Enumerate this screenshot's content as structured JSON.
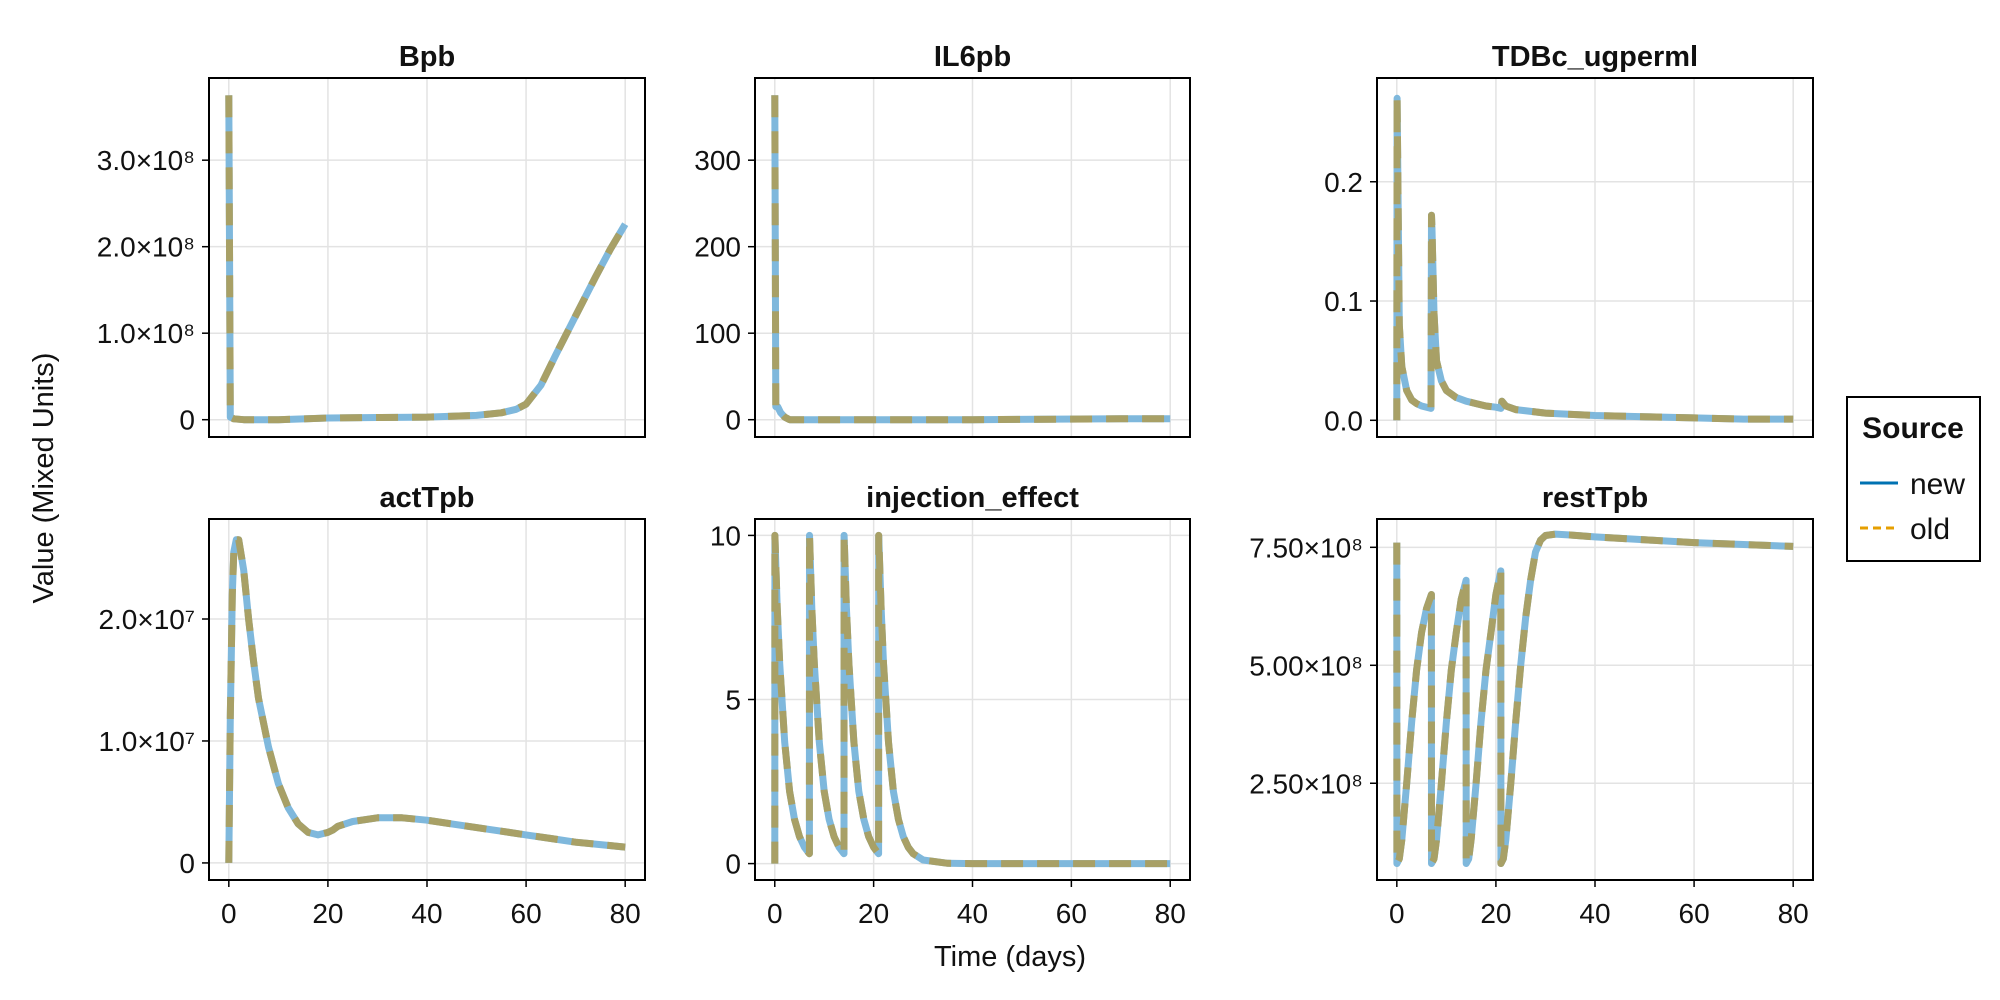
{
  "ylabel": "Value (Mixed Units)",
  "xlabel": "Time (days)",
  "legend": {
    "title": "Source",
    "placement": "right",
    "entries": [
      {
        "label": "new",
        "color": "#0072b2",
        "dash": "solid"
      },
      {
        "label": "old",
        "color": "#e69f00",
        "dash": "dashed"
      }
    ]
  },
  "colors": {
    "new_line": "#7fb8dc",
    "old_line": "#a8a066",
    "grid": "#e3e3e3"
  },
  "x_ticks": [
    "0",
    "20",
    "40",
    "60",
    "80"
  ],
  "chart_data": [
    {
      "type": "line",
      "title": "Bpb",
      "xlim": [
        -4,
        84
      ],
      "ylim": [
        -20000000,
        395000000
      ],
      "yticks": [
        0,
        100000000,
        200000000,
        300000000
      ],
      "ytick_labels": [
        "0",
        "1.0×10⁸",
        "2.0×10⁸",
        "3.0×10⁸"
      ],
      "show_x_ticks": false,
      "grid": true,
      "series": [
        {
          "name": "new",
          "x": [
            0,
            0.3,
            1,
            3,
            10,
            20,
            30,
            40,
            50,
            55,
            58,
            60,
            63,
            66,
            70,
            74,
            77,
            80
          ],
          "y": [
            375000000,
            3000000,
            1000000,
            0,
            0,
            2000000,
            2500000,
            3000000,
            5000000,
            8000000,
            12000000,
            18000000,
            40000000,
            75000000,
            120000000,
            165000000,
            197000000,
            226000000
          ]
        },
        {
          "name": "old",
          "x": [
            0,
            0.3,
            1,
            3,
            10,
            20,
            30,
            40,
            50,
            55,
            58,
            60,
            63,
            66,
            70,
            74,
            77,
            80
          ],
          "y": [
            375000000,
            3000000,
            1000000,
            0,
            0,
            2000000,
            2500000,
            3000000,
            5000000,
            8000000,
            12000000,
            18000000,
            40000000,
            75000000,
            120000000,
            165000000,
            197000000,
            226000000
          ]
        }
      ]
    },
    {
      "type": "line",
      "title": "IL6pb",
      "xlim": [
        -4,
        84
      ],
      "ylim": [
        -20,
        395
      ],
      "yticks": [
        0,
        100,
        200,
        300
      ],
      "ytick_labels": [
        "0",
        "100",
        "200",
        "300"
      ],
      "show_x_ticks": false,
      "grid": true,
      "series": [
        {
          "name": "new",
          "x": [
            0,
            0.2,
            0.6,
            1.2,
            2,
            3,
            10,
            40,
            70,
            80
          ],
          "y": [
            375,
            15,
            15,
            8,
            3,
            0,
            0,
            0,
            1,
            1
          ]
        },
        {
          "name": "old",
          "x": [
            0,
            0.2,
            0.6,
            1.2,
            2,
            3,
            10,
            40,
            70,
            80
          ],
          "y": [
            375,
            15,
            15,
            8,
            3,
            0,
            0,
            0,
            1,
            1
          ]
        }
      ]
    },
    {
      "type": "line",
      "title": "TDBc_ugperml",
      "xlim": [
        -4,
        84
      ],
      "ylim": [
        -0.014,
        0.287
      ],
      "yticks": [
        0,
        0.1,
        0.2
      ],
      "ytick_labels": [
        "0.0",
        "0.1",
        "0.2"
      ],
      "show_x_ticks": false,
      "grid": true,
      "series": [
        {
          "name": "new",
          "x": [
            0,
            0.05,
            0.5,
            1,
            2,
            3,
            4,
            5,
            6.9,
            7,
            7.1,
            7.5,
            8,
            9,
            10,
            12,
            14,
            16,
            18,
            20,
            21,
            21.2,
            22,
            24,
            30,
            40,
            50,
            60,
            70,
            80
          ],
          "y": [
            0,
            0.27,
            0.08,
            0.045,
            0.025,
            0.017,
            0.014,
            0.012,
            0.01,
            0.172,
            0.16,
            0.09,
            0.05,
            0.033,
            0.025,
            0.019,
            0.016,
            0.014,
            0.012,
            0.011,
            0.01,
            0.016,
            0.012,
            0.009,
            0.006,
            0.004,
            0.003,
            0.002,
            0.001,
            0.001
          ]
        },
        {
          "name": "old",
          "x": [
            0,
            0.05,
            0.5,
            1,
            2,
            3,
            4,
            5,
            6.9,
            7,
            7.1,
            7.5,
            8,
            9,
            10,
            12,
            14,
            16,
            18,
            20,
            21,
            21.2,
            22,
            24,
            30,
            40,
            50,
            60,
            70,
            80
          ],
          "y": [
            0,
            0.27,
            0.08,
            0.045,
            0.025,
            0.017,
            0.014,
            0.012,
            0.01,
            0.172,
            0.16,
            0.09,
            0.05,
            0.033,
            0.025,
            0.019,
            0.016,
            0.014,
            0.012,
            0.011,
            0.01,
            0.016,
            0.012,
            0.009,
            0.006,
            0.004,
            0.003,
            0.002,
            0.001,
            0.001
          ]
        }
      ]
    },
    {
      "type": "line",
      "title": "actTpb",
      "xlim": [
        -4,
        84
      ],
      "ylim": [
        -1400000,
        28200000
      ],
      "yticks": [
        0,
        10000000,
        20000000
      ],
      "ytick_labels": [
        "0",
        "1.0×10⁷",
        "2.0×10⁷"
      ],
      "show_x_ticks": true,
      "grid": true,
      "series": [
        {
          "name": "new",
          "x": [
            0,
            0.3,
            0.7,
            1,
            1.5,
            2,
            3,
            4,
            5,
            6,
            8,
            10,
            12,
            14,
            16,
            18,
            20,
            21,
            22,
            25,
            30,
            35,
            40,
            45,
            50,
            55,
            60,
            65,
            70,
            75,
            80
          ],
          "y": [
            0,
            12000000,
            22000000,
            25500000,
            26500000,
            26500000,
            24000000,
            20000000,
            16500000,
            13500000,
            9500000,
            6500000,
            4500000,
            3200000,
            2500000,
            2300000,
            2500000,
            2700000,
            3000000,
            3400000,
            3700000,
            3700000,
            3500000,
            3200000,
            2900000,
            2600000,
            2300000,
            2000000,
            1700000,
            1500000,
            1300000
          ]
        },
        {
          "name": "old",
          "x": [
            0,
            0.3,
            0.7,
            1,
            1.5,
            2,
            3,
            4,
            5,
            6,
            8,
            10,
            12,
            14,
            16,
            18,
            20,
            21,
            22,
            25,
            30,
            35,
            40,
            45,
            50,
            55,
            60,
            65,
            70,
            75,
            80
          ],
          "y": [
            0,
            12000000,
            22000000,
            25500000,
            26500000,
            26500000,
            24000000,
            20000000,
            16500000,
            13500000,
            9500000,
            6500000,
            4500000,
            3200000,
            2500000,
            2300000,
            2500000,
            2700000,
            3000000,
            3400000,
            3700000,
            3700000,
            3500000,
            3200000,
            2900000,
            2600000,
            2300000,
            2000000,
            1700000,
            1500000,
            1300000
          ]
        }
      ]
    },
    {
      "type": "line",
      "title": "injection_effect",
      "xlim": [
        -4,
        84
      ],
      "ylim": [
        -0.5,
        10.5
      ],
      "yticks": [
        0,
        5,
        10
      ],
      "ytick_labels": [
        "0",
        "5",
        "10"
      ],
      "show_x_ticks": true,
      "grid": true,
      "series": [
        {
          "name": "new",
          "x": [
            0,
            0.02,
            0.5,
            1,
            2,
            3,
            4,
            5,
            6,
            6.98,
            7,
            7.02,
            7.5,
            8,
            9,
            10,
            11,
            12,
            13,
            13.98,
            14,
            14.02,
            14.5,
            15,
            16,
            17,
            18,
            19,
            20,
            20.98,
            21,
            21.02,
            21.5,
            22,
            23,
            24,
            25,
            26,
            27,
            28,
            30,
            35,
            40,
            80
          ],
          "y": [
            0,
            10,
            7.8,
            6.1,
            3.7,
            2.2,
            1.35,
            0.82,
            0.5,
            0.3,
            0.3,
            10,
            7.8,
            6.1,
            3.7,
            2.2,
            1.35,
            0.82,
            0.5,
            0.3,
            0.3,
            10,
            7.8,
            6.1,
            3.7,
            2.2,
            1.35,
            0.82,
            0.5,
            0.3,
            0.3,
            10,
            7.8,
            6.1,
            3.7,
            2.2,
            1.35,
            0.82,
            0.5,
            0.3,
            0.11,
            0.01,
            0,
            0
          ]
        },
        {
          "name": "old",
          "x": [
            0,
            0.02,
            0.5,
            1,
            2,
            3,
            4,
            5,
            6,
            6.98,
            7,
            7.02,
            7.5,
            8,
            9,
            10,
            11,
            12,
            13,
            13.98,
            14,
            14.02,
            14.5,
            15,
            16,
            17,
            18,
            19,
            20,
            20.98,
            21,
            21.02,
            21.5,
            22,
            23,
            24,
            25,
            26,
            27,
            28,
            30,
            35,
            40,
            80
          ],
          "y": [
            0,
            10,
            7.8,
            6.1,
            3.7,
            2.2,
            1.35,
            0.82,
            0.5,
            0.3,
            0.3,
            10,
            7.8,
            6.1,
            3.7,
            2.2,
            1.35,
            0.82,
            0.5,
            0.3,
            0.3,
            10,
            7.8,
            6.1,
            3.7,
            2.2,
            1.35,
            0.82,
            0.5,
            0.3,
            0.3,
            10,
            7.8,
            6.1,
            3.7,
            2.2,
            1.35,
            0.82,
            0.5,
            0.3,
            0.11,
            0.01,
            0,
            0
          ]
        }
      ]
    },
    {
      "type": "line",
      "title": "restTpb",
      "xlim": [
        -4,
        84
      ],
      "ylim": [
        45000000,
        810000000
      ],
      "yticks": [
        250000000,
        500000000,
        750000000
      ],
      "ytick_labels": [
        "2.50×10⁸",
        "5.00×10⁸",
        "7.50×10⁸"
      ],
      "show_x_ticks": true,
      "grid": true,
      "series": [
        {
          "name": "new",
          "x": [
            0,
            0.02,
            0.5,
            1,
            2,
            3,
            4,
            5,
            6,
            6.98,
            7,
            7.5,
            8,
            9,
            10,
            11,
            12,
            13,
            13.98,
            14,
            14.5,
            15,
            16,
            17,
            18,
            19,
            20,
            20.98,
            21,
            21.5,
            22,
            23,
            24,
            25,
            26,
            27,
            28,
            29,
            30,
            32,
            35,
            40,
            50,
            60,
            70,
            80
          ],
          "y": [
            760000000,
            80000000,
            90000000,
            130000000,
            250000000,
            380000000,
            490000000,
            570000000,
            620000000,
            650000000,
            80000000,
            90000000,
            130000000,
            250000000,
            380000000,
            490000000,
            570000000,
            640000000,
            680000000,
            80000000,
            90000000,
            130000000,
            250000000,
            380000000,
            490000000,
            570000000,
            650000000,
            700000000,
            80000000,
            90000000,
            130000000,
            250000000,
            380000000,
            500000000,
            600000000,
            680000000,
            740000000,
            765000000,
            775000000,
            778000000,
            776000000,
            772000000,
            766000000,
            760000000,
            756000000,
            752000000
          ]
        },
        {
          "name": "old",
          "x": [
            0,
            0.02,
            0.5,
            1,
            2,
            3,
            4,
            5,
            6,
            6.98,
            7,
            7.5,
            8,
            9,
            10,
            11,
            12,
            13,
            13.98,
            14,
            14.5,
            15,
            16,
            17,
            18,
            19,
            20,
            20.98,
            21,
            21.5,
            22,
            23,
            24,
            25,
            26,
            27,
            28,
            29,
            30,
            32,
            35,
            40,
            50,
            60,
            70,
            80
          ],
          "y": [
            760000000,
            80000000,
            90000000,
            130000000,
            250000000,
            380000000,
            490000000,
            570000000,
            620000000,
            650000000,
            80000000,
            90000000,
            130000000,
            250000000,
            380000000,
            490000000,
            570000000,
            640000000,
            680000000,
            80000000,
            90000000,
            130000000,
            250000000,
            380000000,
            490000000,
            570000000,
            650000000,
            700000000,
            80000000,
            90000000,
            130000000,
            250000000,
            380000000,
            500000000,
            600000000,
            680000000,
            740000000,
            765000000,
            775000000,
            778000000,
            776000000,
            772000000,
            766000000,
            760000000,
            756000000,
            752000000
          ]
        }
      ]
    }
  ]
}
